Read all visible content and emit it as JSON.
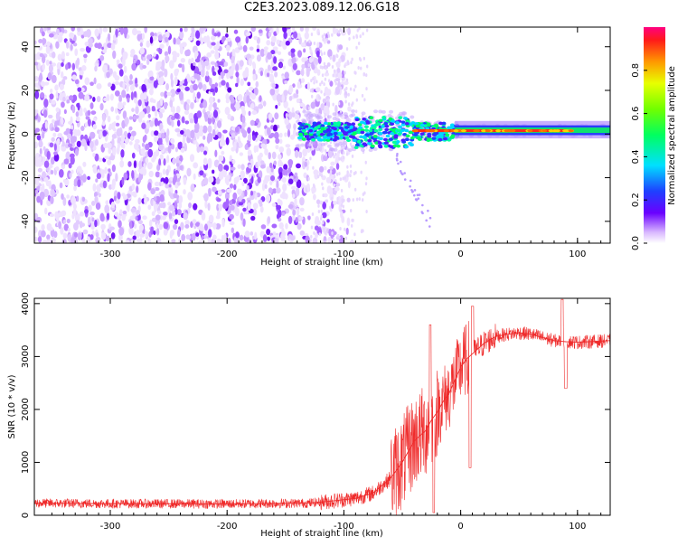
{
  "title": "C2E3.2023.089.12.06.G18",
  "colors": {
    "snr_line": "#ef2b2b",
    "axis": "#000000"
  },
  "chart_data": [
    {
      "type": "heatmap",
      "xlabel": "Height of straight line (km)",
      "ylabel": "Frequency (Hz)",
      "xlim": [
        -365,
        128
      ],
      "ylim": [
        -50,
        49
      ],
      "x_ticks": [
        -300,
        -200,
        -100,
        0,
        100
      ],
      "y_ticks": [
        -40,
        -20,
        0,
        20,
        40
      ],
      "colorbar": {
        "label": "Normalized spectral amplitude",
        "range": [
          0.0,
          1.0
        ],
        "ticks": [
          0.0,
          0.2,
          0.4,
          0.6,
          0.8
        ]
      }
    },
    {
      "type": "line",
      "xlabel": "Height of straight line (km)",
      "ylabel": "SNR (10 * v/v)",
      "xlim": [
        -365,
        128
      ],
      "ylim": [
        0,
        4100
      ],
      "x_ticks": [
        -300,
        -200,
        -100,
        0,
        100
      ],
      "y_ticks": [
        0,
        1000,
        2000,
        3000,
        4000
      ],
      "series": [
        {
          "name": "SNR",
          "x": [
            -365,
            -300,
            -200,
            -130,
            -110,
            -90,
            -75,
            -60,
            -50,
            -45,
            -40,
            -35,
            -30,
            -25,
            -20,
            -15,
            -10,
            -5,
            0,
            5,
            10,
            20,
            30,
            40,
            50,
            60,
            70,
            80,
            90,
            100,
            110,
            128
          ],
          "y": [
            230,
            220,
            215,
            230,
            270,
            320,
            420,
            700,
            1000,
            1200,
            1400,
            1500,
            1600,
            1800,
            1950,
            2150,
            2300,
            2550,
            2800,
            2950,
            3050,
            3250,
            3380,
            3420,
            3450,
            3420,
            3360,
            3300,
            3280,
            3270,
            3280,
            3300
          ]
        }
      ]
    }
  ]
}
